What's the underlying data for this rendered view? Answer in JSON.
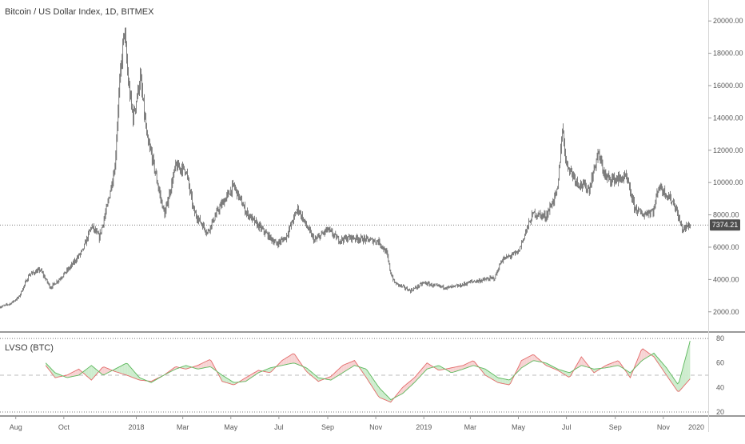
{
  "main_title": "Bitcoin / US Dollar Index, 1D, BITMEX",
  "indicator_title": "LVSO (BTC)",
  "last_price_label": "7374.21",
  "colors": {
    "candles": "#2b2b2b",
    "crosshair": "#555555",
    "price_tag_bg": "#4d4d4d",
    "fast_line": "#e36a6a",
    "slow_line": "#5cb85c",
    "fill_up": "#cdeccd",
    "fill_down": "#f7d2d2",
    "midline": "#bdbdbd",
    "pane_border": "#333333"
  },
  "chart_data": [
    {
      "type": "line",
      "title": "Bitcoin / US Dollar Index, 1D, BITMEX",
      "ylim": [
        800,
        21000
      ],
      "y_ticks": [
        "2000.00",
        "4000.00",
        "6000.00",
        "8000.00",
        "10000.00",
        "12000.00",
        "14000.00",
        "16000.00",
        "18000.00",
        "20000.00"
      ],
      "x_ticks": [
        "Aug",
        "Oct",
        "2018",
        "Mar",
        "May",
        "Jul",
        "Sep",
        "Nov",
        "2019",
        "Mar",
        "May",
        "Jul",
        "Sep",
        "Nov",
        "2020"
      ],
      "last_value": 7374.21,
      "series": [
        {
          "x": [
            "2017-07-12",
            "2017-07-25",
            "2017-08-05",
            "2017-08-18",
            "2017-09-01",
            "2017-09-14",
            "2017-09-25",
            "2017-10-10",
            "2017-10-25",
            "2017-11-05",
            "2017-11-15",
            "2017-11-25",
            "2017-12-05",
            "2017-12-10",
            "2017-12-17",
            "2017-12-22",
            "2017-12-28",
            "2018-01-06",
            "2018-01-15",
            "2018-01-20",
            "2018-02-01",
            "2018-02-06",
            "2018-02-20",
            "2018-03-05",
            "2018-03-15",
            "2018-04-01",
            "2018-04-15",
            "2018-05-05",
            "2018-05-20",
            "2018-06-01",
            "2018-06-28",
            "2018-07-10",
            "2018-07-25",
            "2018-08-05",
            "2018-08-15",
            "2018-09-01",
            "2018-09-15",
            "2018-10-01",
            "2018-10-15",
            "2018-11-05",
            "2018-11-15",
            "2018-11-20",
            "2018-11-25",
            "2018-12-15",
            "2019-01-01",
            "2019-01-15",
            "2019-02-01",
            "2019-02-15",
            "2019-03-01",
            "2019-03-15",
            "2019-04-01",
            "2019-04-10",
            "2019-05-01",
            "2019-05-12",
            "2019-05-20",
            "2019-06-05",
            "2019-06-20",
            "2019-06-26",
            "2019-07-01",
            "2019-07-15",
            "2019-07-30",
            "2019-08-10",
            "2019-08-20",
            "2019-09-01",
            "2019-09-15",
            "2019-09-25",
            "2019-10-05",
            "2019-10-20",
            "2019-10-26",
            "2019-11-05",
            "2019-11-15",
            "2019-11-25",
            "2019-12-05"
          ],
          "values": [
            2300,
            2500,
            2900,
            4300,
            4600,
            3500,
            4000,
            4800,
            5800,
            7300,
            6600,
            8500,
            11000,
            15500,
            19500,
            16200,
            14000,
            16500,
            12500,
            11800,
            9000,
            8000,
            11000,
            10800,
            8200,
            6900,
            8300,
            9800,
            8200,
            7500,
            6200,
            6600,
            8400,
            7300,
            6400,
            7100,
            6450,
            6600,
            6500,
            6350,
            5600,
            4400,
            3800,
            3300,
            3800,
            3600,
            3500,
            3600,
            3850,
            3950,
            4100,
            5200,
            5700,
            7200,
            8100,
            7900,
            9500,
            13400,
            11200,
            10000,
            9600,
            11800,
            10300,
            10200,
            10300,
            8500,
            8000,
            8300,
            9800,
            9300,
            8700,
            7100,
            7374
          ]
        }
      ]
    },
    {
      "type": "area",
      "title": "LVSO (BTC)",
      "ylim": [
        18,
        82
      ],
      "y_ticks": [
        "20",
        "40",
        "60",
        "80"
      ],
      "x_ticks": [
        "Aug",
        "Oct",
        "2018",
        "Mar",
        "May",
        "Jul",
        "Sep",
        "Nov",
        "2019",
        "Mar",
        "May",
        "Jul",
        "Sep",
        "Nov",
        "2020"
      ],
      "series": [
        {
          "name": "",
          "x": [
            "2017-09-08",
            "2017-09-20",
            "2017-10-05",
            "2017-10-20",
            "2017-11-05",
            "2017-11-20",
            "2017-12-05",
            "2017-12-20",
            "2018-01-05",
            "2018-01-20",
            "2018-02-05",
            "2018-02-20",
            "2018-03-05",
            "2018-03-20",
            "2018-04-05",
            "2018-04-20",
            "2018-05-05",
            "2018-05-20",
            "2018-06-05",
            "2018-06-20",
            "2018-07-05",
            "2018-07-20",
            "2018-08-05",
            "2018-08-20",
            "2018-09-05",
            "2018-09-20",
            "2018-10-05",
            "2018-10-20",
            "2018-11-05",
            "2018-11-20",
            "2018-12-05",
            "2018-12-20",
            "2019-01-05",
            "2019-01-20",
            "2019-02-05",
            "2019-02-20",
            "2019-03-05",
            "2019-03-20",
            "2019-04-05",
            "2019-04-20",
            "2019-05-05",
            "2019-05-20",
            "2019-06-05",
            "2019-06-20",
            "2019-07-05",
            "2019-07-20",
            "2019-08-05",
            "2019-08-20",
            "2019-09-05",
            "2019-09-20",
            "2019-10-05",
            "2019-10-20",
            "2019-11-05",
            "2019-11-20",
            "2019-12-05"
          ],
          "values": [
            58,
            48,
            50,
            55,
            46,
            57,
            53,
            50,
            46,
            45,
            50,
            57,
            55,
            58,
            63,
            45,
            42,
            48,
            54,
            52,
            62,
            68,
            53,
            45,
            49,
            58,
            62,
            48,
            32,
            28,
            40,
            48,
            60,
            54,
            56,
            58,
            62,
            50,
            44,
            42,
            62,
            67,
            58,
            54,
            48,
            65,
            52,
            58,
            62,
            48,
            72,
            65,
            50,
            36,
            47
          ]
        },
        {
          "name": "",
          "x": [
            "2017-09-08",
            "2017-09-20",
            "2017-10-05",
            "2017-10-20",
            "2017-11-05",
            "2017-11-20",
            "2017-12-05",
            "2017-12-20",
            "2018-01-05",
            "2018-01-20",
            "2018-02-05",
            "2018-02-20",
            "2018-03-05",
            "2018-03-20",
            "2018-04-05",
            "2018-04-20",
            "2018-05-05",
            "2018-05-20",
            "2018-06-05",
            "2018-06-20",
            "2018-07-05",
            "2018-07-20",
            "2018-08-05",
            "2018-08-20",
            "2018-09-05",
            "2018-09-20",
            "2018-10-05",
            "2018-10-20",
            "2018-11-05",
            "2018-11-20",
            "2018-12-05",
            "2018-12-20",
            "2019-01-05",
            "2019-01-20",
            "2019-02-05",
            "2019-02-20",
            "2019-03-05",
            "2019-03-20",
            "2019-04-05",
            "2019-04-20",
            "2019-05-05",
            "2019-05-20",
            "2019-06-05",
            "2019-06-20",
            "2019-07-05",
            "2019-07-20",
            "2019-08-05",
            "2019-08-20",
            "2019-09-05",
            "2019-09-20",
            "2019-10-05",
            "2019-10-20",
            "2019-11-05",
            "2019-11-20",
            "2019-12-05"
          ],
          "values": [
            60,
            52,
            48,
            50,
            58,
            50,
            55,
            60,
            48,
            44,
            50,
            55,
            58,
            55,
            57,
            50,
            44,
            45,
            52,
            56,
            58,
            60,
            56,
            48,
            46,
            52,
            58,
            55,
            40,
            30,
            35,
            44,
            55,
            58,
            52,
            55,
            58,
            55,
            48,
            46,
            56,
            62,
            60,
            55,
            52,
            58,
            55,
            56,
            58,
            52,
            62,
            68,
            56,
            42,
            78
          ]
        }
      ]
    }
  ]
}
